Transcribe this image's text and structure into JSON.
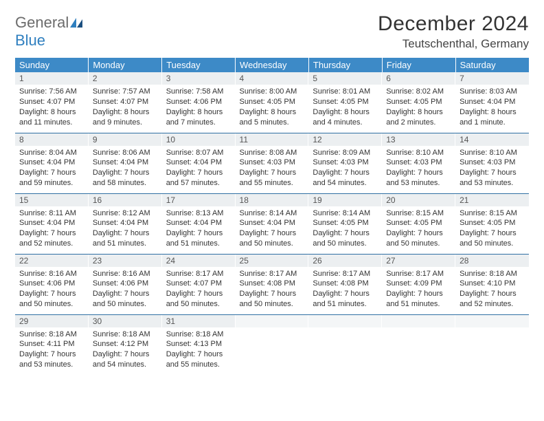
{
  "logo": {
    "word1": "General",
    "word2": "Blue"
  },
  "title": "December 2024",
  "location": "Teutschenthal, Germany",
  "colors": {
    "header_bg": "#3d8ac7",
    "header_text": "#ffffff",
    "daynum_bg": "#eceff1",
    "row_border": "#2f6fa3",
    "logo_gray": "#6b6b6b",
    "logo_blue": "#2f7fbf",
    "body_text": "#333333",
    "background": "#ffffff"
  },
  "weekdays": [
    "Sunday",
    "Monday",
    "Tuesday",
    "Wednesday",
    "Thursday",
    "Friday",
    "Saturday"
  ],
  "weeks": [
    [
      {
        "n": "1",
        "sunrise": "7:56 AM",
        "sunset": "4:07 PM",
        "daylight": "8 hours and 11 minutes."
      },
      {
        "n": "2",
        "sunrise": "7:57 AM",
        "sunset": "4:07 PM",
        "daylight": "8 hours and 9 minutes."
      },
      {
        "n": "3",
        "sunrise": "7:58 AM",
        "sunset": "4:06 PM",
        "daylight": "8 hours and 7 minutes."
      },
      {
        "n": "4",
        "sunrise": "8:00 AM",
        "sunset": "4:05 PM",
        "daylight": "8 hours and 5 minutes."
      },
      {
        "n": "5",
        "sunrise": "8:01 AM",
        "sunset": "4:05 PM",
        "daylight": "8 hours and 4 minutes."
      },
      {
        "n": "6",
        "sunrise": "8:02 AM",
        "sunset": "4:05 PM",
        "daylight": "8 hours and 2 minutes."
      },
      {
        "n": "7",
        "sunrise": "8:03 AM",
        "sunset": "4:04 PM",
        "daylight": "8 hours and 1 minute."
      }
    ],
    [
      {
        "n": "8",
        "sunrise": "8:04 AM",
        "sunset": "4:04 PM",
        "daylight": "7 hours and 59 minutes."
      },
      {
        "n": "9",
        "sunrise": "8:06 AM",
        "sunset": "4:04 PM",
        "daylight": "7 hours and 58 minutes."
      },
      {
        "n": "10",
        "sunrise": "8:07 AM",
        "sunset": "4:04 PM",
        "daylight": "7 hours and 57 minutes."
      },
      {
        "n": "11",
        "sunrise": "8:08 AM",
        "sunset": "4:03 PM",
        "daylight": "7 hours and 55 minutes."
      },
      {
        "n": "12",
        "sunrise": "8:09 AM",
        "sunset": "4:03 PM",
        "daylight": "7 hours and 54 minutes."
      },
      {
        "n": "13",
        "sunrise": "8:10 AM",
        "sunset": "4:03 PM",
        "daylight": "7 hours and 53 minutes."
      },
      {
        "n": "14",
        "sunrise": "8:10 AM",
        "sunset": "4:03 PM",
        "daylight": "7 hours and 53 minutes."
      }
    ],
    [
      {
        "n": "15",
        "sunrise": "8:11 AM",
        "sunset": "4:04 PM",
        "daylight": "7 hours and 52 minutes."
      },
      {
        "n": "16",
        "sunrise": "8:12 AM",
        "sunset": "4:04 PM",
        "daylight": "7 hours and 51 minutes."
      },
      {
        "n": "17",
        "sunrise": "8:13 AM",
        "sunset": "4:04 PM",
        "daylight": "7 hours and 51 minutes."
      },
      {
        "n": "18",
        "sunrise": "8:14 AM",
        "sunset": "4:04 PM",
        "daylight": "7 hours and 50 minutes."
      },
      {
        "n": "19",
        "sunrise": "8:14 AM",
        "sunset": "4:05 PM",
        "daylight": "7 hours and 50 minutes."
      },
      {
        "n": "20",
        "sunrise": "8:15 AM",
        "sunset": "4:05 PM",
        "daylight": "7 hours and 50 minutes."
      },
      {
        "n": "21",
        "sunrise": "8:15 AM",
        "sunset": "4:05 PM",
        "daylight": "7 hours and 50 minutes."
      }
    ],
    [
      {
        "n": "22",
        "sunrise": "8:16 AM",
        "sunset": "4:06 PM",
        "daylight": "7 hours and 50 minutes."
      },
      {
        "n": "23",
        "sunrise": "8:16 AM",
        "sunset": "4:06 PM",
        "daylight": "7 hours and 50 minutes."
      },
      {
        "n": "24",
        "sunrise": "8:17 AM",
        "sunset": "4:07 PM",
        "daylight": "7 hours and 50 minutes."
      },
      {
        "n": "25",
        "sunrise": "8:17 AM",
        "sunset": "4:08 PM",
        "daylight": "7 hours and 50 minutes."
      },
      {
        "n": "26",
        "sunrise": "8:17 AM",
        "sunset": "4:08 PM",
        "daylight": "7 hours and 51 minutes."
      },
      {
        "n": "27",
        "sunrise": "8:17 AM",
        "sunset": "4:09 PM",
        "daylight": "7 hours and 51 minutes."
      },
      {
        "n": "28",
        "sunrise": "8:18 AM",
        "sunset": "4:10 PM",
        "daylight": "7 hours and 52 minutes."
      }
    ],
    [
      {
        "n": "29",
        "sunrise": "8:18 AM",
        "sunset": "4:11 PM",
        "daylight": "7 hours and 53 minutes."
      },
      {
        "n": "30",
        "sunrise": "8:18 AM",
        "sunset": "4:12 PM",
        "daylight": "7 hours and 54 minutes."
      },
      {
        "n": "31",
        "sunrise": "8:18 AM",
        "sunset": "4:13 PM",
        "daylight": "7 hours and 55 minutes."
      },
      null,
      null,
      null,
      null
    ]
  ]
}
